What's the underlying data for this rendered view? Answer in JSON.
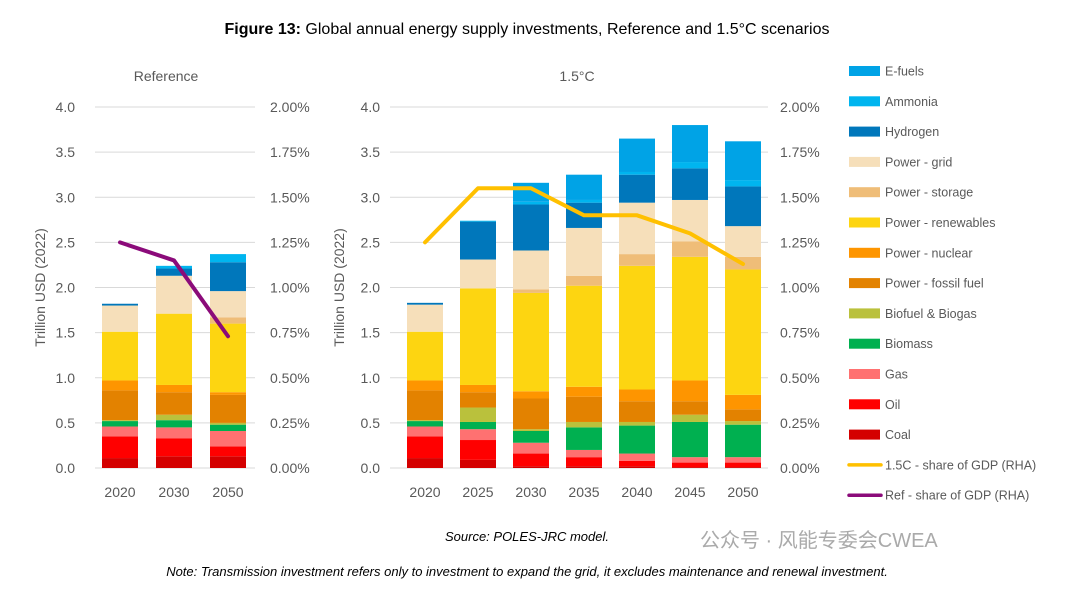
{
  "title_bold": "Figure 13:",
  "title_rest": " Global annual energy supply investments, Reference and 1.5°C scenarios",
  "source": "Source: POLES-JRC model.",
  "note": "Note: Transmission investment refers only to investment to expand the grid, it excludes maintenance and renewal investment.",
  "watermark": "公众号 · 风能专委会CWEA",
  "chart_data": [
    {
      "type": "bar",
      "stacked": true,
      "title": "Reference",
      "ylabel": "Trillion USD (2022)",
      "ylim": [
        0,
        4.0
      ],
      "y2lim": [
        0,
        2.0
      ],
      "yticks": [
        "0.0",
        "0.5",
        "1.0",
        "1.5",
        "2.0",
        "2.5",
        "3.0",
        "3.5",
        "4.0"
      ],
      "y2ticks": [
        "0.00%",
        "0.25%",
        "0.50%",
        "0.75%",
        "1.00%",
        "1.25%",
        "1.50%",
        "1.75%",
        "2.00%"
      ],
      "grid": true,
      "categories": [
        "2020",
        "2030",
        "2050"
      ],
      "series": [
        {
          "name": "Coal",
          "color": "#d40000",
          "values": [
            0.11,
            0.13,
            0.13
          ]
        },
        {
          "name": "Oil",
          "color": "#ff0000",
          "values": [
            0.24,
            0.2,
            0.11
          ]
        },
        {
          "name": "Gas",
          "color": "#ff7171",
          "values": [
            0.11,
            0.12,
            0.17
          ]
        },
        {
          "name": "Biomass",
          "color": "#00b050",
          "values": [
            0.06,
            0.08,
            0.07
          ]
        },
        {
          "name": "Biofuel & Biogas",
          "color": "#bac13c",
          "values": [
            0.01,
            0.06,
            0.02
          ]
        },
        {
          "name": "Power - fossil fuel",
          "color": "#e38200",
          "values": [
            0.33,
            0.25,
            0.31
          ]
        },
        {
          "name": "Power - nuclear",
          "color": "#fe9500",
          "values": [
            0.11,
            0.08,
            0.03
          ]
        },
        {
          "name": "Power - renewables",
          "color": "#fdd511",
          "values": [
            0.54,
            0.79,
            0.76
          ]
        },
        {
          "name": "Power - storage",
          "color": "#efbd78",
          "values": [
            0.0,
            0.0,
            0.07
          ]
        },
        {
          "name": "Power - grid",
          "color": "#f6dfba",
          "values": [
            0.29,
            0.42,
            0.29
          ]
        },
        {
          "name": "Hydrogen",
          "color": "#0077bb",
          "values": [
            0.02,
            0.08,
            0.32
          ]
        },
        {
          "name": "Ammonia",
          "color": "#00b5ef",
          "values": [
            0.0,
            0.03,
            0.09
          ]
        },
        {
          "name": "E-fuels",
          "color": "#00a3e6",
          "values": [
            0.0,
            0.0,
            0.0
          ]
        }
      ],
      "line": {
        "name": "Ref - share of GDP (RHA)",
        "color": "#8b0b7a",
        "axis": "right",
        "values": [
          1.25,
          1.15,
          0.73
        ]
      }
    },
    {
      "type": "bar",
      "stacked": true,
      "title": "1.5°C",
      "ylabel": "Trillion USD (2022)",
      "ylim": [
        0,
        4.0
      ],
      "y2lim": [
        0,
        2.0
      ],
      "yticks": [
        "0.0",
        "0.5",
        "1.0",
        "1.5",
        "2.0",
        "2.5",
        "3.0",
        "3.5",
        "4.0"
      ],
      "y2ticks": [
        "0.00%",
        "0.25%",
        "0.50%",
        "0.75%",
        "1.00%",
        "1.25%",
        "1.50%",
        "1.75%",
        "2.00%"
      ],
      "grid": true,
      "categories": [
        "2020",
        "2025",
        "2030",
        "2035",
        "2040",
        "2045",
        "2050"
      ],
      "series": [
        {
          "name": "Coal",
          "color": "#d40000",
          "values": [
            0.11,
            0.09,
            0.02,
            0.02,
            0.02,
            0.01,
            0.01
          ]
        },
        {
          "name": "Oil",
          "color": "#ff0000",
          "values": [
            0.24,
            0.22,
            0.14,
            0.1,
            0.06,
            0.05,
            0.05
          ]
        },
        {
          "name": "Gas",
          "color": "#ff7171",
          "values": [
            0.11,
            0.12,
            0.12,
            0.08,
            0.08,
            0.06,
            0.06
          ]
        },
        {
          "name": "Biomass",
          "color": "#00b050",
          "values": [
            0.06,
            0.08,
            0.13,
            0.25,
            0.31,
            0.39,
            0.36
          ]
        },
        {
          "name": "Biofuel & Biogas",
          "color": "#bac13c",
          "values": [
            0.01,
            0.16,
            0.02,
            0.06,
            0.04,
            0.08,
            0.04
          ]
        },
        {
          "name": "Power - fossil fuel",
          "color": "#e38200",
          "values": [
            0.33,
            0.17,
            0.34,
            0.28,
            0.23,
            0.15,
            0.13
          ]
        },
        {
          "name": "Power - nuclear",
          "color": "#fe9500",
          "values": [
            0.11,
            0.08,
            0.08,
            0.11,
            0.13,
            0.23,
            0.16
          ]
        },
        {
          "name": "Power - renewables",
          "color": "#fdd511",
          "values": [
            0.54,
            1.07,
            1.09,
            1.12,
            1.37,
            1.37,
            1.39
          ]
        },
        {
          "name": "Power - storage",
          "color": "#efbd78",
          "values": [
            0.0,
            0.0,
            0.04,
            0.11,
            0.13,
            0.17,
            0.14
          ]
        },
        {
          "name": "Power - grid",
          "color": "#f6dfba",
          "values": [
            0.3,
            0.32,
            0.43,
            0.53,
            0.57,
            0.46,
            0.34
          ]
        },
        {
          "name": "Hydrogen",
          "color": "#0077bb",
          "values": [
            0.02,
            0.42,
            0.51,
            0.28,
            0.31,
            0.35,
            0.44
          ]
        },
        {
          "name": "Ammonia",
          "color": "#00b5ef",
          "values": [
            0.0,
            0.01,
            0.03,
            0.03,
            0.03,
            0.07,
            0.07
          ]
        },
        {
          "name": "E-fuels",
          "color": "#00a3e6",
          "values": [
            0.0,
            0.0,
            0.21,
            0.28,
            0.37,
            0.41,
            0.43
          ]
        }
      ],
      "line": {
        "name": "1.5C - share of GDP (RHA)",
        "color": "#ffc000",
        "axis": "right",
        "values": [
          1.25,
          1.55,
          1.55,
          1.4,
          1.4,
          1.3,
          1.13
        ]
      }
    }
  ],
  "legend": {
    "placement": "right",
    "items": [
      {
        "label": "E-fuels",
        "color": "#00a3e6",
        "kind": "bar"
      },
      {
        "label": "Ammonia",
        "color": "#00b5ef",
        "kind": "bar"
      },
      {
        "label": "Hydrogen",
        "color": "#0077bb",
        "kind": "bar"
      },
      {
        "label": "Power - grid",
        "color": "#f6dfba",
        "kind": "bar"
      },
      {
        "label": "Power - storage",
        "color": "#efbd78",
        "kind": "bar"
      },
      {
        "label": "Power - renewables",
        "color": "#fdd511",
        "kind": "bar"
      },
      {
        "label": "Power - nuclear",
        "color": "#fe9500",
        "kind": "bar"
      },
      {
        "label": "Power - fossil fuel",
        "color": "#e38200",
        "kind": "bar"
      },
      {
        "label": "Biofuel & Biogas",
        "color": "#bac13c",
        "kind": "bar"
      },
      {
        "label": "Biomass",
        "color": "#00b050",
        "kind": "bar"
      },
      {
        "label": "Gas",
        "color": "#ff7171",
        "kind": "bar"
      },
      {
        "label": "Oil",
        "color": "#ff0000",
        "kind": "bar"
      },
      {
        "label": "Coal",
        "color": "#d40000",
        "kind": "bar"
      },
      {
        "label": "1.5C - share of GDP (RHA)",
        "color": "#ffc000",
        "kind": "line"
      },
      {
        "label": "Ref - share of GDP (RHA)",
        "color": "#8b0b7a",
        "kind": "line"
      }
    ]
  }
}
